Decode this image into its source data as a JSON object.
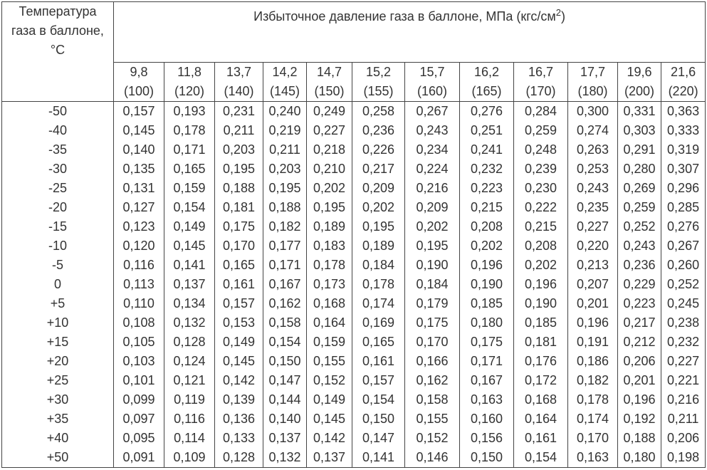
{
  "table": {
    "corner": "Температура газа в баллоне, °С",
    "title": "Избыточное давление газа в баллоне, МПа (кгс/см",
    "title_sup": "2",
    "title_end": ")",
    "columns": [
      {
        "mpa": "9,8",
        "kgf": "(100)"
      },
      {
        "mpa": "11,8",
        "kgf": "(120)"
      },
      {
        "mpa": "13,7",
        "kgf": "(140)"
      },
      {
        "mpa": "14,2",
        "kgf": "(145)"
      },
      {
        "mpa": "14,7",
        "kgf": "(150)"
      },
      {
        "mpa": "15,2",
        "kgf": "(155)"
      },
      {
        "mpa": "15,7",
        "kgf": "(160)"
      },
      {
        "mpa": "16,2",
        "kgf": "(165)"
      },
      {
        "mpa": "16,7",
        "kgf": "(170)"
      },
      {
        "mpa": "17,7",
        "kgf": "(180)"
      },
      {
        "mpa": "19,6",
        "kgf": "(200)"
      },
      {
        "mpa": "21,6",
        "kgf": "(220)"
      }
    ],
    "rows": [
      {
        "temp": "-50",
        "values": [
          "0,157",
          "0,193",
          "0,231",
          "0,240",
          "0,249",
          "0,258",
          "0,267",
          "0,276",
          "0,284",
          "0,300",
          "0,331",
          "0,363"
        ]
      },
      {
        "temp": "-40",
        "values": [
          "0,145",
          "0,178",
          "0,211",
          "0,219",
          "0,227",
          "0,236",
          "0,243",
          "0,251",
          "0,259",
          "0,274",
          "0,303",
          "0,333"
        ]
      },
      {
        "temp": "-35",
        "values": [
          "0,140",
          "0,171",
          "0,203",
          "0,211",
          "0,218",
          "0,226",
          "0,234",
          "0,241",
          "0,248",
          "0,263",
          "0,291",
          "0,319"
        ]
      },
      {
        "temp": "-30",
        "values": [
          "0,135",
          "0,165",
          "0,195",
          "0,203",
          "0,210",
          "0,217",
          "0,224",
          "0,232",
          "0,239",
          "0,253",
          "0,280",
          "0,307"
        ]
      },
      {
        "temp": "-25",
        "values": [
          "0,131",
          "0,159",
          "0,188",
          "0,195",
          "0,202",
          "0,209",
          "0,216",
          "0,223",
          "0,230",
          "0,243",
          "0,269",
          "0,296"
        ]
      },
      {
        "temp": "-20",
        "values": [
          "0,127",
          "0,154",
          "0,181",
          "0,188",
          "0,195",
          "0,202",
          "0,209",
          "0,215",
          "0,222",
          "0,235",
          "0,259",
          "0,285"
        ]
      },
      {
        "temp": "-15",
        "values": [
          "0,123",
          "0,149",
          "0,175",
          "0,182",
          "0,189",
          "0,195",
          "0,202",
          "0,208",
          "0,215",
          "0,227",
          "0,252",
          "0,276"
        ]
      },
      {
        "temp": "-10",
        "values": [
          "0,120",
          "0,145",
          "0,170",
          "0,177",
          "0,183",
          "0,189",
          "0,195",
          "0,202",
          "0,208",
          "0,220",
          "0,243",
          "0,267"
        ]
      },
      {
        "temp": "-5",
        "values": [
          "0,116",
          "0,141",
          "0,165",
          "0,171",
          "0,178",
          "0,184",
          "0,190",
          "0,196",
          "0,202",
          "0,213",
          "0,236",
          "0,260"
        ]
      },
      {
        "temp": "0",
        "values": [
          "0,113",
          "0,137",
          "0,161",
          "0,167",
          "0,173",
          "0,178",
          "0,184",
          "0,190",
          "0,196",
          "0,207",
          "0,229",
          "0,252"
        ]
      },
      {
        "temp": "+5",
        "values": [
          "0,110",
          "0,134",
          "0,157",
          "0,162",
          "0,168",
          "0,174",
          "0,179",
          "0,185",
          "0,190",
          "0,201",
          "0,223",
          "0,245"
        ]
      },
      {
        "temp": "+10",
        "values": [
          "0,108",
          "0,132",
          "0,153",
          "0,158",
          "0,164",
          "0,169",
          "0,175",
          "0,180",
          "0,185",
          "0,196",
          "0,217",
          "0,238"
        ]
      },
      {
        "temp": "+15",
        "values": [
          "0,105",
          "0,128",
          "0,149",
          "0,154",
          "0,159",
          "0,165",
          "0,170",
          "0,175",
          "0,181",
          "0,191",
          "0,212",
          "0,232"
        ]
      },
      {
        "temp": "+20",
        "values": [
          "0,103",
          "0,124",
          "0,145",
          "0,150",
          "0,155",
          "0,161",
          "0,166",
          "0,171",
          "0,176",
          "0,186",
          "0,206",
          "0,227"
        ]
      },
      {
        "temp": "+25",
        "values": [
          "0,101",
          "0,121",
          "0,142",
          "0,147",
          "0,152",
          "0,157",
          "0,162",
          "0,167",
          "0,172",
          "0,182",
          "0,201",
          "0,221"
        ]
      },
      {
        "temp": "+30",
        "values": [
          "0,099",
          "0,119",
          "0,139",
          "0,144",
          "0,149",
          "0,154",
          "0,158",
          "0,163",
          "0,168",
          "0,178",
          "0,196",
          "0,216"
        ]
      },
      {
        "temp": "+35",
        "values": [
          "0,097",
          "0,116",
          "0,136",
          "0,140",
          "0,145",
          "0,150",
          "0,155",
          "0,160",
          "0,164",
          "0,174",
          "0,192",
          "0,211"
        ]
      },
      {
        "temp": "+40",
        "values": [
          "0,095",
          "0,114",
          "0,133",
          "0,137",
          "0,142",
          "0,147",
          "0,152",
          "0,156",
          "0,161",
          "0,170",
          "0,188",
          "0,206"
        ]
      },
      {
        "temp": "+50",
        "values": [
          "0,091",
          "0,109",
          "0,128",
          "0,132",
          "0,137",
          "0,141",
          "0,146",
          "0,150",
          "0,154",
          "0,163",
          "0,180",
          "0,198"
        ]
      }
    ]
  }
}
